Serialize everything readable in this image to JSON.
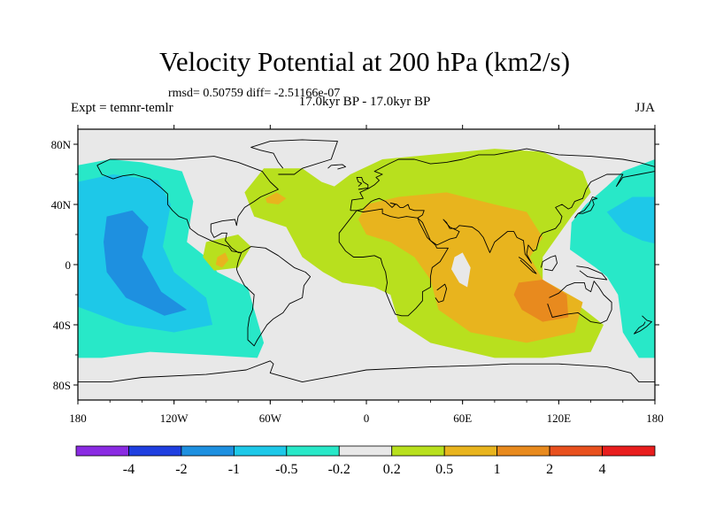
{
  "title": "Velocity Potential at 200 hPa (km2/s)",
  "stats": "rmsd= 0.50759 diff= -2.51166e-07",
  "left_label": "Expt = temnr-temlr",
  "center_label": "17.0kyr BP - 17.0kyr BP",
  "right_label": "JJA",
  "colors": {
    "land_outline": "#000000",
    "neutral": "#e8e8e8"
  },
  "chart_data": {
    "type": "heatmap",
    "title": "Velocity Potential at 200 hPa (km2/s)",
    "projection": "cylindrical equidistant",
    "x_range": [
      -180,
      180
    ],
    "y_range": [
      -90,
      90
    ],
    "x_ticks": [
      {
        "value": -180,
        "label": "180"
      },
      {
        "value": -120,
        "label": "120W"
      },
      {
        "value": -60,
        "label": "60W"
      },
      {
        "value": 0,
        "label": "0"
      },
      {
        "value": 60,
        "label": "60E"
      },
      {
        "value": 120,
        "label": "120E"
      },
      {
        "value": 180,
        "label": "180"
      }
    ],
    "y_ticks": [
      {
        "value": 80,
        "label": "80N"
      },
      {
        "value": 40,
        "label": "40N"
      },
      {
        "value": 0,
        "label": "0"
      },
      {
        "value": -40,
        "label": "40S"
      },
      {
        "value": -80,
        "label": "80S"
      }
    ],
    "levels": [
      {
        "label": "-4"
      },
      {
        "label": "-2"
      },
      {
        "label": "-1"
      },
      {
        "label": "-0.5"
      },
      {
        "label": "-0.2"
      },
      {
        "label": "0.2"
      },
      {
        "label": "0.5"
      },
      {
        "label": "1"
      },
      {
        "label": "2"
      },
      {
        "label": "4"
      }
    ],
    "colorbar": [
      "#8a2be2",
      "#1f3fe0",
      "#1e90e0",
      "#1ec8e8",
      "#28e8c8",
      "#e8e8e8",
      "#b8e01e",
      "#e8b41e",
      "#e88a1e",
      "#e8501e",
      "#e81e1e"
    ],
    "regions": [
      {
        "name": "nw-pacific-cyan",
        "level": "-0.5 to -0.2",
        "color": "#28e8c8",
        "points": [
          [
            -180,
            66
          ],
          [
            -160,
            70
          ],
          [
            -140,
            68
          ],
          [
            -115,
            62
          ],
          [
            -108,
            42
          ],
          [
            -112,
            15
          ],
          [
            -100,
            5
          ],
          [
            -93,
            -5
          ],
          [
            -74,
            -15
          ],
          [
            -70,
            -30
          ],
          [
            -64,
            -52
          ],
          [
            -68,
            -62
          ],
          [
            -100,
            -60
          ],
          [
            -135,
            -58
          ],
          [
            -165,
            -62
          ],
          [
            -180,
            -62
          ]
        ]
      },
      {
        "name": "pacific-lightblue",
        "level": "-1 to -0.5",
        "color": "#1ec8e8",
        "points": [
          [
            -180,
            55
          ],
          [
            -158,
            60
          ],
          [
            -130,
            56
          ],
          [
            -122,
            40
          ],
          [
            -127,
            12
          ],
          [
            -120,
            -5
          ],
          [
            -100,
            -22
          ],
          [
            -96,
            -40
          ],
          [
            -120,
            -45
          ],
          [
            -150,
            -40
          ],
          [
            -170,
            -32
          ],
          [
            -180,
            -28
          ]
        ]
      },
      {
        "name": "pacific-blue",
        "level": "-2 to -1",
        "color": "#1e90e0",
        "points": [
          [
            -162,
            32
          ],
          [
            -146,
            36
          ],
          [
            -136,
            25
          ],
          [
            -140,
            5
          ],
          [
            -128,
            -18
          ],
          [
            -112,
            -30
          ],
          [
            -126,
            -34
          ],
          [
            -150,
            -22
          ],
          [
            -162,
            -5
          ],
          [
            -164,
            15
          ]
        ]
      },
      {
        "name": "w-pacific-cyan",
        "level": "-0.5 to -0.2",
        "color": "#28e8c8",
        "points": [
          [
            180,
            70
          ],
          [
            160,
            62
          ],
          [
            150,
            52
          ],
          [
            137,
            40
          ],
          [
            128,
            28
          ],
          [
            127,
            10
          ],
          [
            143,
            -2
          ],
          [
            150,
            -8
          ],
          [
            157,
            -20
          ],
          [
            160,
            -45
          ],
          [
            170,
            -62
          ],
          [
            180,
            -62
          ]
        ]
      },
      {
        "name": "w-pacific-lightblue",
        "level": "-1 to -0.5",
        "color": "#1ec8e8",
        "points": [
          [
            180,
            45
          ],
          [
            166,
            45
          ],
          [
            150,
            35
          ],
          [
            160,
            22
          ],
          [
            172,
            16
          ],
          [
            180,
            14
          ]
        ]
      },
      {
        "name": "north-atlantic-green",
        "level": "0.2 to 0.5",
        "color": "#b8e01e",
        "points": [
          [
            -76,
            48
          ],
          [
            -64,
            64
          ],
          [
            -40,
            64
          ],
          [
            -28,
            55
          ],
          [
            -20,
            52
          ],
          [
            -10,
            60
          ],
          [
            10,
            70
          ],
          [
            40,
            73
          ],
          [
            80,
            77
          ],
          [
            110,
            75
          ],
          [
            135,
            62
          ],
          [
            140,
            48
          ],
          [
            128,
            32
          ],
          [
            120,
            20
          ],
          [
            110,
            5
          ],
          [
            110,
            -10
          ],
          [
            130,
            -25
          ],
          [
            148,
            -40
          ],
          [
            140,
            -58
          ],
          [
            110,
            -62
          ],
          [
            80,
            -62
          ],
          [
            40,
            -52
          ],
          [
            20,
            -38
          ],
          [
            15,
            -20
          ],
          [
            5,
            -15
          ],
          [
            -15,
            -12
          ],
          [
            -27,
            -5
          ],
          [
            -40,
            5
          ],
          [
            -50,
            25
          ],
          [
            -70,
            32
          ]
        ]
      },
      {
        "name": "caribbean-green",
        "level": "0.2 to 0.5",
        "color": "#b8e01e",
        "points": [
          [
            -100,
            15
          ],
          [
            -80,
            20
          ],
          [
            -72,
            12
          ],
          [
            -80,
            -2
          ],
          [
            -95,
            -4
          ],
          [
            -102,
            5
          ]
        ]
      },
      {
        "name": "caribbean-orange",
        "level": "0.5 to 1",
        "color": "#e8b41e",
        "points": [
          [
            -93,
            5
          ],
          [
            -88,
            8
          ],
          [
            -86,
            3
          ],
          [
            -90,
            -2
          ],
          [
            -94,
            0
          ]
        ]
      },
      {
        "name": "labrador-orange",
        "level": "0.5 to 1",
        "color": "#e8b41e",
        "points": [
          [
            -63,
            44
          ],
          [
            -56,
            48
          ],
          [
            -50,
            44
          ],
          [
            -55,
            40
          ],
          [
            -62,
            41
          ]
        ]
      },
      {
        "name": "africa-asia-orange",
        "level": "0.5 to 1",
        "color": "#e8b41e",
        "points": [
          [
            0,
            40
          ],
          [
            20,
            45
          ],
          [
            50,
            48
          ],
          [
            80,
            40
          ],
          [
            100,
            35
          ],
          [
            110,
            18
          ],
          [
            102,
            5
          ],
          [
            110,
            -10
          ],
          [
            135,
            -25
          ],
          [
            130,
            -45
          ],
          [
            100,
            -52
          ],
          [
            65,
            -45
          ],
          [
            45,
            -30
          ],
          [
            40,
            -10
          ],
          [
            30,
            5
          ],
          [
            15,
            15
          ],
          [
            0,
            20
          ],
          [
            -5,
            30
          ]
        ]
      },
      {
        "name": "australia-darkorange",
        "level": "1 to 2",
        "color": "#e88a1e",
        "points": [
          [
            95,
            -12
          ],
          [
            110,
            -10
          ],
          [
            125,
            -20
          ],
          [
            126,
            -35
          ],
          [
            110,
            -38
          ],
          [
            97,
            -30
          ],
          [
            92,
            -20
          ]
        ]
      },
      {
        "name": "arabian-sea-gray",
        "level": "-0.2 to 0.2",
        "color": "#e8e8e8",
        "points": [
          [
            55,
            5
          ],
          [
            60,
            8
          ],
          [
            65,
            -2
          ],
          [
            63,
            -15
          ],
          [
            58,
            -12
          ],
          [
            53,
            -3
          ]
        ]
      }
    ]
  }
}
